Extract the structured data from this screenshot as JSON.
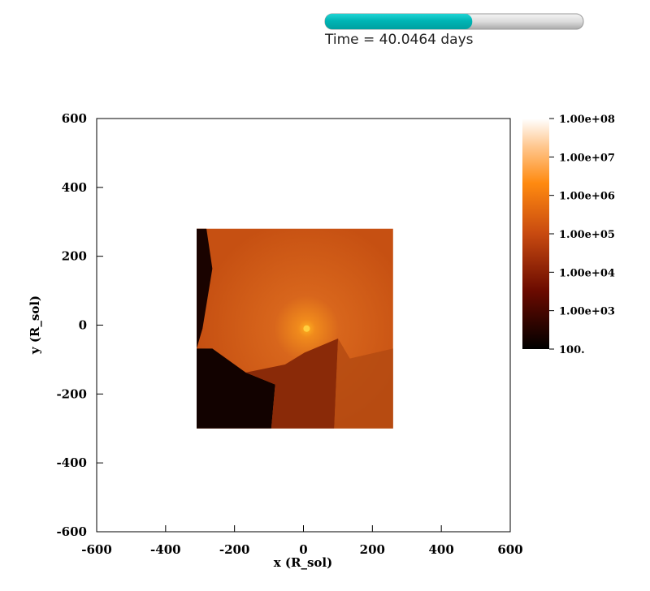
{
  "chart_data": {
    "type": "image",
    "time_label": "Time = 40.0464 days",
    "progress": 0.57,
    "xlabel": "x (R_sol)",
    "ylabel": "y (R_sol)",
    "xlim": [
      -600,
      600
    ],
    "ylim": [
      -600,
      600
    ],
    "xticks": [
      -600,
      -400,
      -200,
      0,
      200,
      400,
      600
    ],
    "yticks": [
      -600,
      -400,
      -200,
      0,
      200,
      400,
      600
    ],
    "image_extent": {
      "x": [
        -310,
        260
      ],
      "y": [
        -300,
        280
      ]
    },
    "colorbar": {
      "log": true,
      "lim": [
        100,
        100000000
      ],
      "ticks": [
        {
          "value": 100000000,
          "label": "1.00e+08"
        },
        {
          "value": 10000000,
          "label": "1.00e+07"
        },
        {
          "value": 1000000,
          "label": "1.00e+06"
        },
        {
          "value": 100000,
          "label": "1.00e+05"
        },
        {
          "value": 10000,
          "label": "1.00e+04"
        },
        {
          "value": 1000,
          "label": "1.00e+03"
        },
        {
          "value": 100,
          "label": "100."
        }
      ]
    }
  }
}
